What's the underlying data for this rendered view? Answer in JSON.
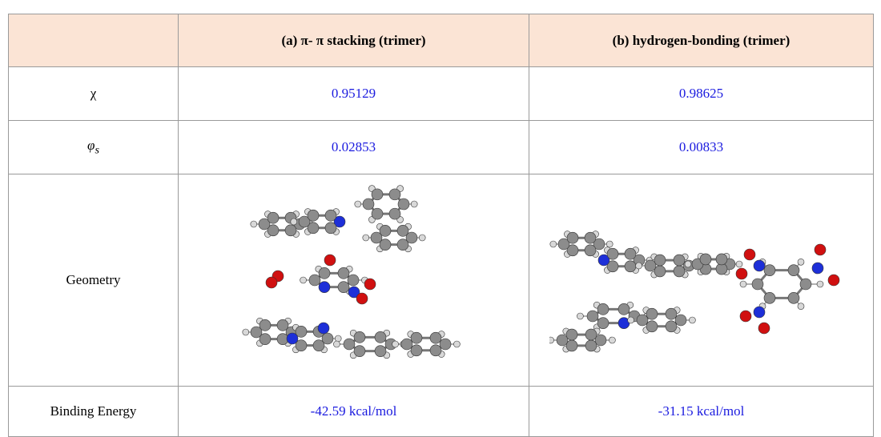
{
  "table": {
    "header": [
      "(a) π- π stacking (trimer)",
      "(b) hydrogen-bonding (trimer)"
    ],
    "rows": [
      {
        "label": "χ",
        "values": [
          "0.95129",
          "0.98625"
        ]
      },
      {
        "label": "φ",
        "label_sub": "s",
        "values": [
          "0.02853",
          "0.00833"
        ]
      },
      {
        "label": "Geometry"
      },
      {
        "label": "Binding Energy",
        "values": [
          "-42.59 kcal/mol",
          "-31.15 kcal/mol"
        ]
      }
    ]
  }
}
